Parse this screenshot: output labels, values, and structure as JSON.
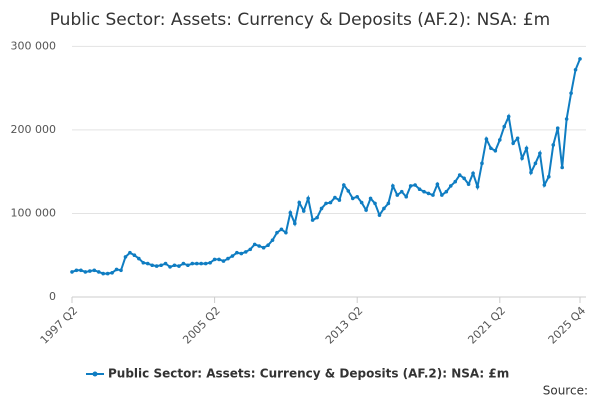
{
  "chart_data": {
    "type": "line",
    "title": "Public Sector: Assets: Currency & Deposits (AF.2): NSA: £m",
    "categories": [
      "1997 Q2",
      null,
      null,
      null,
      null,
      null,
      null,
      null,
      null,
      null,
      null,
      null,
      null,
      null,
      null,
      null,
      null,
      null,
      null,
      null,
      null,
      null,
      null,
      null,
      null,
      null,
      null,
      null,
      null,
      null,
      null,
      null,
      "2005 Q2",
      null,
      null,
      null,
      null,
      null,
      null,
      null,
      null,
      null,
      null,
      null,
      null,
      null,
      null,
      null,
      null,
      null,
      null,
      null,
      null,
      null,
      null,
      null,
      null,
      null,
      null,
      null,
      null,
      null,
      null,
      null,
      "2013 Q2",
      null,
      null,
      null,
      null,
      null,
      null,
      null,
      null,
      null,
      null,
      null,
      null,
      null,
      null,
      null,
      null,
      null,
      null,
      null,
      null,
      null,
      null,
      null,
      null,
      null,
      null,
      null,
      null,
      null,
      null,
      null,
      "2021 Q2",
      null,
      null,
      null,
      null,
      null,
      null,
      null,
      null,
      null,
      null,
      null,
      null,
      null,
      null,
      null,
      null,
      null,
      "2025 Q4"
    ],
    "series": [
      {
        "name": "Public Sector: Assets: Currency & Deposits (AF.2): NSA: £m",
        "color": "#0f7dc2",
        "values": [
          30000,
          32000,
          32000,
          30000,
          31000,
          32000,
          30000,
          28000,
          28000,
          29000,
          33000,
          32000,
          48000,
          53000,
          50000,
          46000,
          41000,
          40000,
          38000,
          37000,
          38000,
          40000,
          36000,
          38000,
          37000,
          40000,
          38000,
          40000,
          40000,
          40000,
          40000,
          41000,
          45000,
          45000,
          43000,
          46000,
          49000,
          53000,
          52000,
          54000,
          57000,
          63000,
          61000,
          59000,
          62000,
          68000,
          77000,
          81000,
          77000,
          101000,
          88000,
          113000,
          103000,
          118000,
          92000,
          95000,
          106000,
          112000,
          113000,
          119000,
          116000,
          134000,
          127000,
          118000,
          120000,
          113000,
          104000,
          118000,
          112000,
          98000,
          106000,
          112000,
          133000,
          122000,
          126000,
          120000,
          133000,
          134000,
          129000,
          126000,
          124000,
          122000,
          135000,
          122000,
          126000,
          133000,
          138000,
          146000,
          142000,
          135000,
          148000,
          132000,
          160000,
          189000,
          178000,
          175000,
          188000,
          204000,
          216000,
          184000,
          190000,
          166000,
          178000,
          149000,
          160000,
          172000,
          134000,
          144000,
          182000,
          202000,
          155000,
          213000,
          244000,
          272000,
          285000
        ]
      }
    ],
    "ylim": [
      0,
      310000
    ],
    "yticks": [
      0,
      {
        "value": 100000,
        "label": "100 000"
      },
      {
        "value": 200000,
        "label": "200 000"
      },
      {
        "value": 300000,
        "label": "300 000"
      }
    ],
    "grid": true,
    "source": "Source:"
  }
}
